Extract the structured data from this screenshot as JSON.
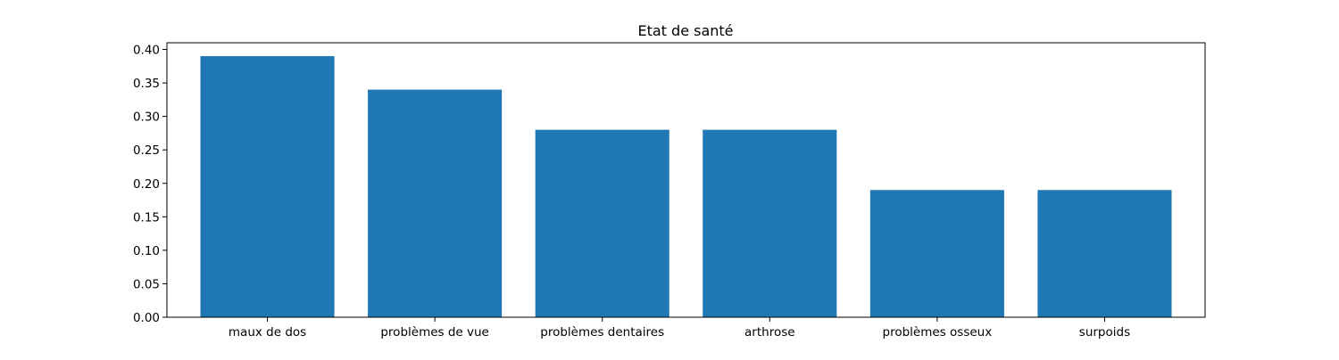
{
  "chart_data": {
    "type": "bar",
    "title": "Etat de santé",
    "xlabel": "",
    "ylabel": "",
    "categories": [
      "maux de dos",
      "problèmes de vue",
      "problèmes dentaires",
      "arthrose",
      "problèmes osseux",
      "surpoids"
    ],
    "values": [
      0.39,
      0.34,
      0.28,
      0.28,
      0.19,
      0.19
    ],
    "ylim": [
      0,
      0.41
    ],
    "yticks": [
      "0.00",
      "0.05",
      "0.10",
      "0.15",
      "0.20",
      "0.25",
      "0.30",
      "0.35",
      "0.40"
    ],
    "grid": false,
    "bar_color": "#1f77b4"
  }
}
